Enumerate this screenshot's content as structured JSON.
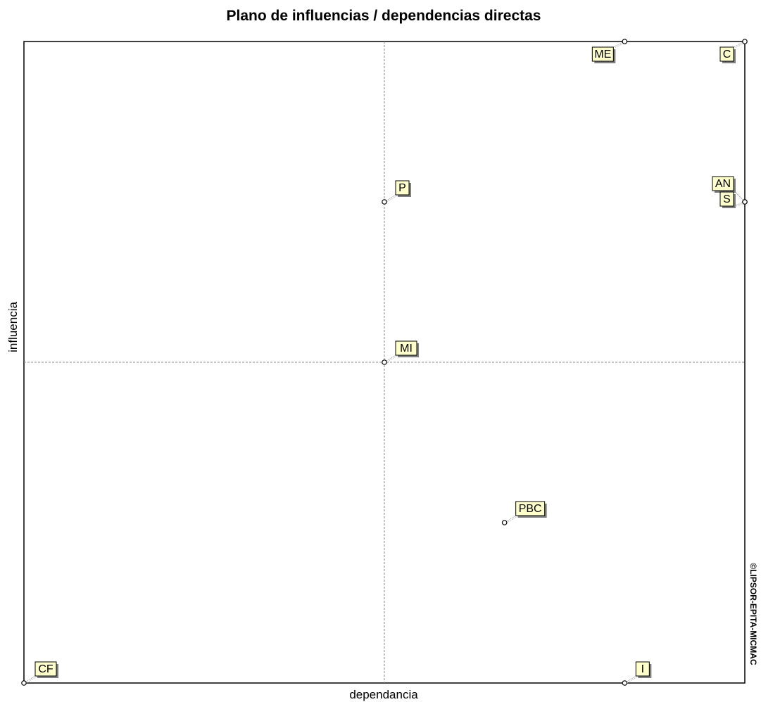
{
  "chart_data": {
    "type": "scatter",
    "title": "Plano de influencias / dependencias directas",
    "xlabel": "dependancia",
    "ylabel": "influencia",
    "copyright": "©LIPSOR-EPITA-MICMAC",
    "grid": false,
    "xlim": [
      0,
      6
    ],
    "ylim": [
      0,
      4
    ],
    "quadrant_lines": {
      "x": 3,
      "y": 2
    },
    "points": [
      {
        "label": "ME",
        "x": 5,
        "y": 4
      },
      {
        "label": "C",
        "x": 6,
        "y": 4
      },
      {
        "label": "P",
        "x": 3,
        "y": 3
      },
      {
        "label": "AN",
        "x": 6,
        "y": 3
      },
      {
        "label": "S",
        "x": 6,
        "y": 3
      },
      {
        "label": "MI",
        "x": 3,
        "y": 2
      },
      {
        "label": "PBC",
        "x": 4,
        "y": 1
      },
      {
        "label": "CF",
        "x": 0,
        "y": 0
      },
      {
        "label": "I",
        "x": 5,
        "y": 0
      }
    ],
    "colors": {
      "label_fill": "#ffffcc",
      "label_shadow": "#808080",
      "frame": "#000000"
    }
  }
}
